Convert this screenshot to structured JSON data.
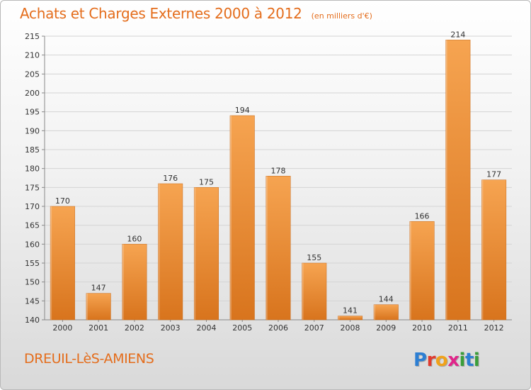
{
  "header": {
    "title": "Achats et Charges Externes 2000 à 2012",
    "subtitle": "(en milliers d'€)"
  },
  "footer": {
    "commune": "DREUIL-LèS-AMIENS",
    "logo_letters": [
      "P",
      "r",
      "o",
      "x",
      "i",
      "t",
      "i"
    ],
    "logo_colors": [
      "#2d7fd3",
      "#e03b2e",
      "#f0a21a",
      "#e0258a",
      "#3a9e3a",
      "#2d7fd3",
      "#3a9e3a"
    ]
  },
  "colors": {
    "bar_top": "#f6a451",
    "bar_bottom": "#d8741d",
    "accent": "#e46d1c"
  },
  "chart_data": {
    "type": "bar",
    "title": "Achats et Charges Externes 2000 à 2012",
    "subtitle": "(en milliers d'€)",
    "categories": [
      "2000",
      "2001",
      "2002",
      "2003",
      "2004",
      "2005",
      "2006",
      "2007",
      "2008",
      "2009",
      "2010",
      "2011",
      "2012"
    ],
    "values": [
      170,
      147,
      160,
      176,
      175,
      194,
      178,
      155,
      141,
      144,
      166,
      214,
      177
    ],
    "ylim": [
      140,
      215
    ],
    "yticks": [
      140,
      145,
      150,
      155,
      160,
      165,
      170,
      175,
      180,
      185,
      190,
      195,
      200,
      205,
      210,
      215
    ],
    "grid": true,
    "legend": "none"
  }
}
